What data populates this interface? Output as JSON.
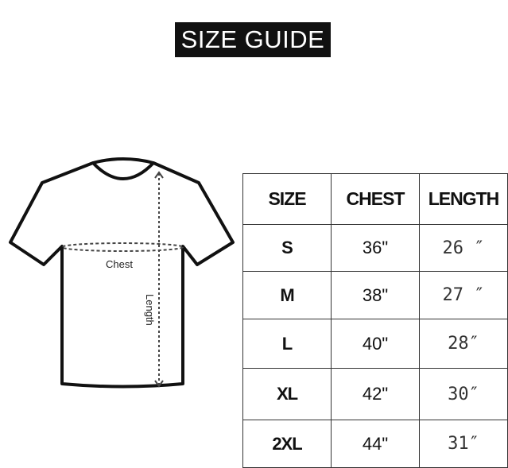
{
  "title": "SIZE GUIDE",
  "diagram": {
    "chest_label": "Chest",
    "length_label": "Length",
    "icon": "t-shirt-icon"
  },
  "table": {
    "headers": [
      "SIZE",
      "CHEST",
      "LENGTH"
    ],
    "rows": [
      {
        "size": "S",
        "chest": "36\"",
        "length": "26 ″"
      },
      {
        "size": "M",
        "chest": "38\"",
        "length": "27 ″"
      },
      {
        "size": "L",
        "chest": "40\"",
        "length": "28″"
      },
      {
        "size": "XL",
        "chest": "42\"",
        "length": "30″"
      },
      {
        "size": "2XL",
        "chest": "44\"",
        "length": "31″"
      }
    ]
  }
}
